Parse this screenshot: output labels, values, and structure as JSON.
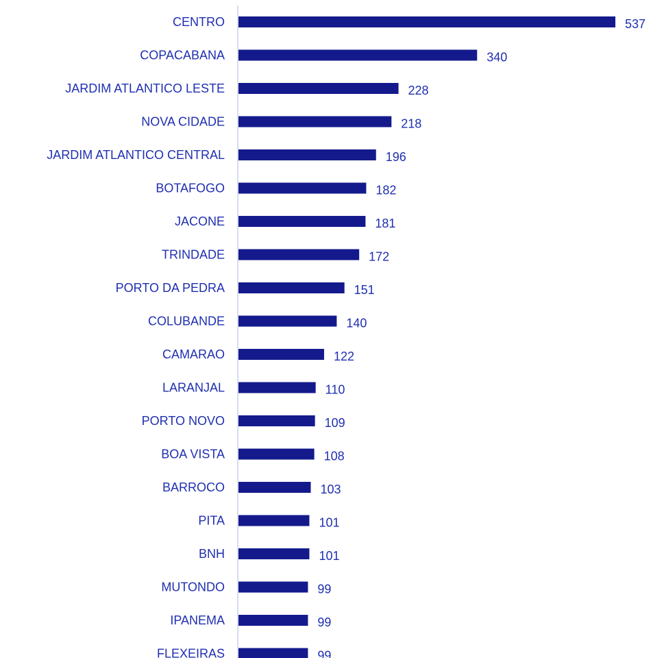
{
  "chart_data": {
    "type": "bar",
    "orientation": "horizontal",
    "categories": [
      "CENTRO",
      "COPACABANA",
      "JARDIM ATLANTICO LESTE",
      "NOVA CIDADE",
      "JARDIM ATLANTICO CENTRAL",
      "BOTAFOGO",
      "JACONE",
      "TRINDADE",
      "PORTO DA PEDRA",
      "COLUBANDE",
      "CAMARAO",
      "LARANJAL",
      "PORTO NOVO",
      "BOA VISTA",
      "BARROCO",
      "PITA",
      "BNH",
      "MUTONDO",
      "IPANEMA",
      "FLEXEIRAS"
    ],
    "values": [
      537,
      340,
      228,
      218,
      196,
      182,
      181,
      172,
      151,
      140,
      122,
      110,
      109,
      108,
      103,
      101,
      101,
      99,
      99,
      99
    ],
    "title": "",
    "xlabel": "",
    "ylabel": "",
    "xlim": [
      0,
      537
    ],
    "grid": false,
    "legend": "none",
    "data_labels": true,
    "colors": {
      "bar": "#141a8c",
      "label": "#1f2fb0",
      "axis": "#c8d2e8"
    }
  }
}
